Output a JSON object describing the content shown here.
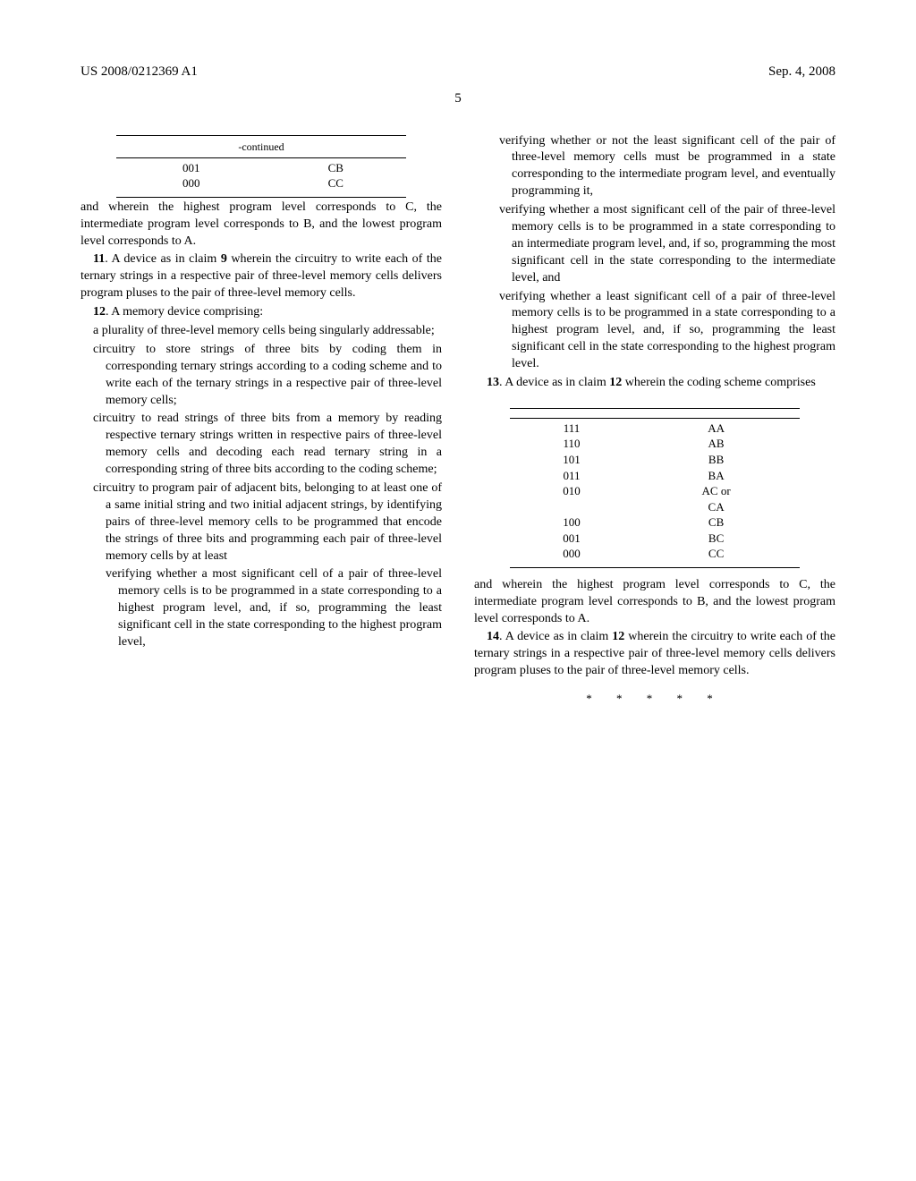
{
  "header": {
    "pubnum": "US 2008/0212369 A1",
    "date": "Sep. 4, 2008",
    "page": "5"
  },
  "left": {
    "table_caption": "-continued",
    "table_rows": [
      [
        "001",
        "CB"
      ],
      [
        "000",
        "CC"
      ]
    ],
    "p1": "and wherein the highest program level corresponds to C, the intermediate program level corresponds to B, and the lowest program level corresponds to A.",
    "p2a": "11",
    "p2b": ". A device as in claim ",
    "p2c": "9",
    "p2d": " wherein the circuitry to write each of the ternary strings in a respective pair of three-level memory cells delivers program pluses to the pair of three-level memory cells.",
    "p3a": "12",
    "p3b": ". A memory device comprising:",
    "s1": "a plurality of three-level memory cells being singularly addressable;",
    "s2": "circuitry to store strings of three bits by coding them in corresponding ternary strings according to a coding scheme and to write each of the ternary strings in a respective pair of three-level memory cells;",
    "s3": "circuitry to read strings of three bits from a memory by reading respective ternary strings written in respective pairs of three-level memory cells and decoding each read ternary string in a corresponding string of three bits according to the coding scheme;",
    "s4": "circuitry to program pair of adjacent bits, belonging to at least one of a same initial string and two initial adjacent strings, by identifying pairs of three-level memory cells to be programmed that encode the strings of three bits and programming each pair of three-level memory cells by at least",
    "s5": "verifying whether a most significant cell of a pair of three-level memory cells is to be programmed in a state corresponding to a highest program level, and, if so, programming the least significant cell in the state corresponding to the highest program level,"
  },
  "right": {
    "s1": "verifying whether or not the least significant cell of the pair of three-level memory cells must be programmed in a state corresponding to the intermediate program level, and eventually programming it,",
    "s2": "verifying whether a most significant cell of the pair of three-level memory cells is to be programmed in a state corresponding to an intermediate program level, and, if so, programming the most significant cell in the state corresponding to the intermediate level, and",
    "s3": "verifying whether a least significant cell of a pair of three-level memory cells is to be programmed in a state corresponding to a highest program level, and, if so, programming the least significant cell in the state corresponding to the highest program level.",
    "p1a": "13",
    "p1b": ". A device as in claim ",
    "p1c": "12",
    "p1d": " wherein the coding scheme comprises",
    "table_rows": [
      [
        "111",
        "AA"
      ],
      [
        "110",
        "AB"
      ],
      [
        "101",
        "BB"
      ],
      [
        "011",
        "BA"
      ],
      [
        "010",
        "AC or"
      ],
      [
        "",
        "CA"
      ],
      [
        "100",
        "CB"
      ],
      [
        "001",
        "BC"
      ],
      [
        "000",
        "CC"
      ]
    ],
    "p2": "and wherein the highest program level corresponds to C, the intermediate program level corresponds to B, and the lowest program level corresponds to A.",
    "p3a": "14",
    "p3b": ". A device as in claim ",
    "p3c": "12",
    "p3d": " wherein the circuitry to write each of the ternary strings in a respective pair of three-level memory cells delivers program pluses to the pair of three-level memory cells.",
    "stars": "*  *  *  *  *"
  }
}
